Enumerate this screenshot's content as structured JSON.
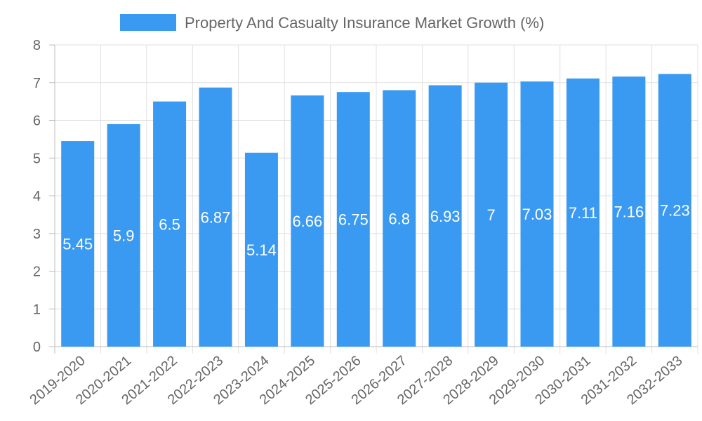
{
  "chart_data": {
    "type": "bar",
    "title": "",
    "xlabel": "",
    "ylabel": "",
    "legend": {
      "label": "Property And Casualty Insurance Market Growth (%)",
      "position": "top-center"
    },
    "categories": [
      "2019-2020",
      "2020-2021",
      "2021-2022",
      "2022-2023",
      "2023-2024",
      "2024-2025",
      "2025-2026",
      "2026-2027",
      "2027-2028",
      "2028-2029",
      "2029-2030",
      "2030-2031",
      "2031-2032",
      "2032-2033"
    ],
    "series": [
      {
        "name": "Property And Casualty Insurance Market Growth (%)",
        "values": [
          5.45,
          5.9,
          6.5,
          6.87,
          5.14,
          6.66,
          6.75,
          6.8,
          6.93,
          7,
          7.03,
          7.11,
          7.16,
          7.23
        ],
        "labels": [
          "5.45",
          "5.9",
          "6.5",
          "6.87",
          "5.14",
          "6.66",
          "6.75",
          "6.8",
          "6.93",
          "7",
          "7.03",
          "7.11",
          "7.16",
          "7.23"
        ]
      }
    ],
    "ylim": [
      0,
      8
    ],
    "yticks": [
      "0",
      "1",
      "2",
      "3",
      "4",
      "5",
      "6",
      "7",
      "8"
    ],
    "grid": true
  },
  "colors": {
    "bar": "#3a99f0",
    "grid": "#e0e0e0",
    "axis": "#bdbdbd",
    "text": "#666666"
  }
}
